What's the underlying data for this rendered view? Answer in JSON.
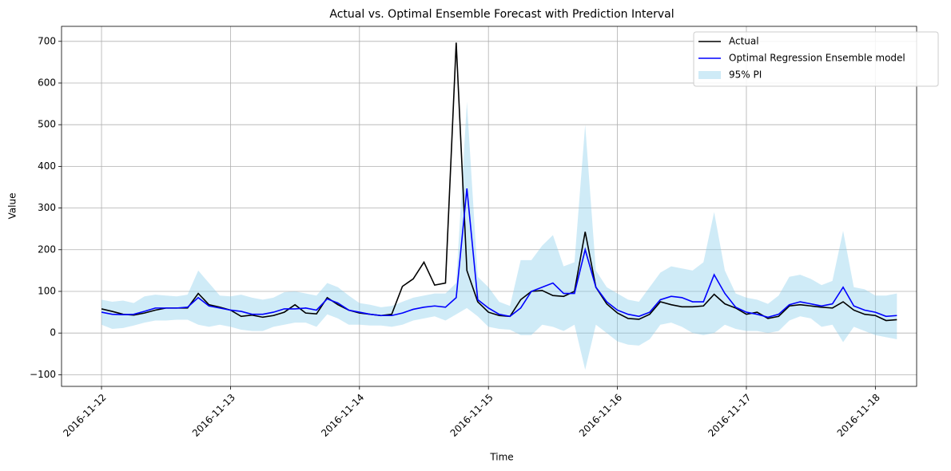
{
  "chart_data": {
    "type": "line",
    "title": "Actual vs. Optimal Ensemble Forecast with Prediction Interval",
    "x_label": "Time",
    "y_label": "Value",
    "x": [
      0,
      0.083,
      0.167,
      0.25,
      0.333,
      0.417,
      0.5,
      0.583,
      0.667,
      0.75,
      0.833,
      0.917,
      1,
      1.083,
      1.167,
      1.25,
      1.333,
      1.417,
      1.5,
      1.583,
      1.667,
      1.75,
      1.833,
      1.917,
      2,
      2.083,
      2.167,
      2.25,
      2.333,
      2.417,
      2.5,
      2.583,
      2.667,
      2.75,
      2.833,
      2.917,
      3,
      3.083,
      3.167,
      3.25,
      3.333,
      3.417,
      3.5,
      3.583,
      3.667,
      3.75,
      3.833,
      3.917,
      4,
      4.083,
      4.167,
      4.25,
      4.333,
      4.417,
      4.5,
      4.583,
      4.667,
      4.75,
      4.833,
      4.917,
      5,
      5.083,
      5.167,
      5.25,
      5.333,
      5.417,
      5.5,
      5.583,
      5.667,
      5.75,
      5.833,
      5.917,
      6,
      6.083,
      6.167
    ],
    "series": [
      {
        "name": "Actual",
        "color": "#000000",
        "values": [
          58,
          52,
          45,
          43,
          48,
          55,
          60,
          60,
          60,
          95,
          68,
          62,
          55,
          40,
          43,
          38,
          42,
          50,
          68,
          48,
          46,
          85,
          68,
          55,
          48,
          45,
          42,
          45,
          112,
          130,
          170,
          115,
          120,
          697,
          150,
          75,
          50,
          42,
          40,
          80,
          100,
          102,
          90,
          88,
          100,
          243,
          110,
          70,
          48,
          35,
          33,
          45,
          75,
          68,
          63,
          63,
          65,
          93,
          70,
          60,
          45,
          50,
          35,
          40,
          65,
          68,
          65,
          62,
          60,
          75,
          55,
          45,
          42,
          30,
          32
        ]
      },
      {
        "name": "Optimal Regression Ensemble model",
        "color": "#0000ff",
        "values": [
          50,
          45,
          44,
          45,
          52,
          60,
          60,
          60,
          62,
          85,
          65,
          60,
          55,
          52,
          45,
          45,
          50,
          58,
          58,
          60,
          55,
          82,
          72,
          55,
          50,
          45,
          42,
          42,
          48,
          57,
          62,
          65,
          62,
          85,
          347,
          80,
          60,
          45,
          40,
          60,
          100,
          110,
          120,
          95,
          95,
          200,
          110,
          75,
          55,
          45,
          40,
          50,
          80,
          88,
          85,
          75,
          75,
          140,
          95,
          62,
          50,
          45,
          38,
          45,
          68,
          75,
          70,
          65,
          70,
          110,
          65,
          55,
          50,
          40,
          42
        ]
      }
    ],
    "band": {
      "name": "95% PI",
      "color": "#87ceeb",
      "upper": [
        80,
        75,
        78,
        72,
        88,
        92,
        90,
        88,
        92,
        150,
        120,
        90,
        88,
        92,
        85,
        80,
        85,
        98,
        100,
        95,
        90,
        120,
        110,
        90,
        72,
        68,
        62,
        65,
        75,
        85,
        90,
        95,
        95,
        120,
        555,
        135,
        110,
        75,
        65,
        175,
        175,
        210,
        235,
        160,
        170,
        500,
        150,
        110,
        95,
        80,
        75,
        110,
        145,
        160,
        155,
        150,
        170,
        290,
        150,
        95,
        85,
        80,
        70,
        90,
        135,
        140,
        130,
        115,
        125,
        245,
        110,
        105,
        90,
        90,
        95
      ],
      "lower": [
        20,
        10,
        12,
        18,
        25,
        30,
        30,
        32,
        32,
        20,
        15,
        20,
        15,
        8,
        5,
        5,
        15,
        20,
        25,
        25,
        15,
        45,
        35,
        20,
        20,
        18,
        18,
        15,
        20,
        30,
        35,
        40,
        30,
        45,
        60,
        40,
        15,
        10,
        8,
        -5,
        -5,
        20,
        15,
        5,
        20,
        -88,
        20,
        0,
        -20,
        -28,
        -30,
        -15,
        20,
        25,
        15,
        0,
        -5,
        0,
        20,
        10,
        5,
        5,
        0,
        5,
        30,
        40,
        35,
        15,
        20,
        -22,
        15,
        5,
        -5,
        -10,
        -15
      ]
    },
    "xlim": [
      -0.31,
      6.32
    ],
    "ylim": [
      -128,
      736
    ],
    "xticks": [
      {
        "value": 0,
        "label": "2016-11-12"
      },
      {
        "value": 1,
        "label": "2016-11-13"
      },
      {
        "value": 2,
        "label": "2016-11-14"
      },
      {
        "value": 3,
        "label": "2016-11-15"
      },
      {
        "value": 4,
        "label": "2016-11-16"
      },
      {
        "value": 5,
        "label": "2016-11-17"
      },
      {
        "value": 6,
        "label": "2016-11-18"
      }
    ],
    "yticks": [
      {
        "value": -100,
        "label": "−100"
      },
      0,
      100,
      200,
      300,
      400,
      500,
      600,
      700
    ],
    "grid": true,
    "legend": "upper right"
  }
}
